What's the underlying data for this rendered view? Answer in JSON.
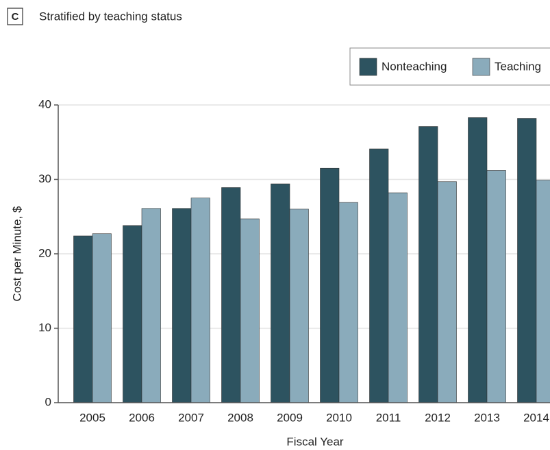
{
  "chart_data": {
    "type": "bar",
    "panel_label": "C",
    "title": "Stratified by teaching status",
    "y_label": "Cost per Minute, $",
    "x_label": "Fiscal Year",
    "categories": [
      "2005",
      "2006",
      "2007",
      "2008",
      "2009",
      "2010",
      "2011",
      "2012",
      "2013",
      "2014"
    ],
    "series": [
      {
        "name": "Nonteaching",
        "color": "#2d5360",
        "values": [
          22.4,
          23.8,
          26.1,
          28.9,
          29.4,
          31.5,
          34.1,
          37.1,
          38.3,
          38.2
        ]
      },
      {
        "name": "Teaching",
        "color": "#8aabbb",
        "values": [
          22.7,
          26.1,
          27.5,
          24.7,
          26.0,
          26.9,
          28.2,
          29.7,
          31.2,
          29.9
        ]
      }
    ],
    "ylim": [
      0,
      40
    ],
    "yticks": [
      0,
      10,
      20,
      30,
      40
    ],
    "grid": true,
    "legend": "top-right"
  }
}
